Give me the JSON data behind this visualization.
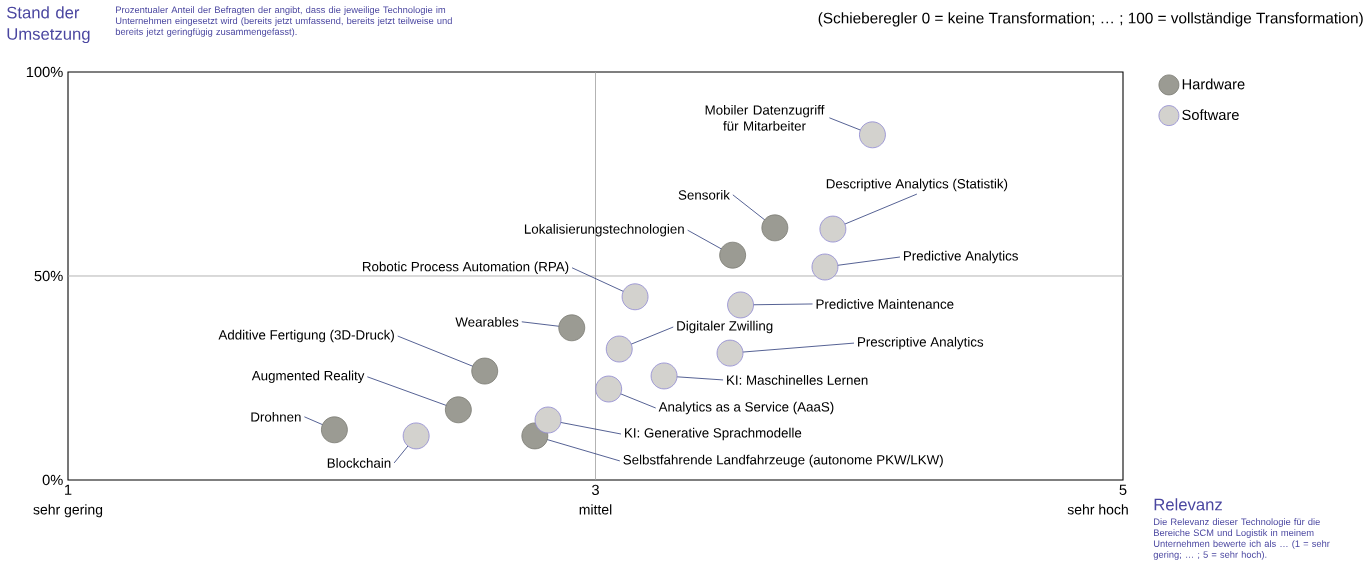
{
  "chart_data": {
    "type": "scatter",
    "ylabel": "Stand der Umsetzung",
    "subtitle": "Prozentualer Anteil der Befragten der angibt, dass die jeweilige Technologie im Unternehmen eingesetzt wird (bereits jetzt umfassend, bereits jetzt teilweise und bereits jetzt geringfügig zusammengefasst).",
    "xlabel": "Relevanz",
    "xlim": [
      1,
      5
    ],
    "xticks": [
      1,
      3,
      5
    ],
    "ylim": [
      0,
      100
    ],
    "yticks": [
      {
        "value": 0,
        "label": "0%"
      },
      {
        "value": 50,
        "label": "50%"
      },
      {
        "value": 100,
        "label": "100%"
      }
    ],
    "ref_lines": [
      {
        "axis": "x",
        "value": 3,
        "color": "#a0a0a0"
      },
      {
        "axis": "y",
        "value": 50,
        "color": "#a0a0a0"
      }
    ],
    "marker": "circle",
    "legend": "top right",
    "series": [
      {
        "name": "Hardware",
        "color": "#9b9b93",
        "x": [
          3.68,
          3.52,
          2.91,
          2.58,
          2.48,
          2.01,
          2.77
        ],
        "values": [
          61.8,
          55.1,
          37.3,
          26.7,
          17.2,
          12.3,
          10.8
        ]
      },
      {
        "name": "Software",
        "color": "#d3d2ce",
        "x": [
          4.05,
          3.9,
          3.87,
          3.15,
          3.55,
          3.09,
          3.51,
          3.26,
          3.05,
          2.82,
          2.32
        ],
        "values": [
          84.6,
          61.5,
          52.2,
          44.9,
          42.9,
          32.1,
          31.1,
          25.5,
          22.3,
          14.7,
          10.8
        ]
      }
    ],
    "annotations": [
      "(Schieberegler 0 = keine Transformation; … ; 100 = vollständige Transformation)",
      "sehr gering",
      "mittel",
      "sehr hoch",
      "Die Relevanz dieser Technologie für die Bereiche SCM und Logistik in meinem Unternehmen bewerte ich als … (1 = sehr gering; … ; 5 = sehr hoch).",
      {
        "text": "Mobiler Datenzugriff für Mitarbeiter",
        "x": 4.05,
        "y": 84.6
      },
      {
        "text": "Sensorik",
        "x": 3.68,
        "y": 61.8
      },
      {
        "text": "Descriptive Analytics (Statistik)",
        "x": 3.9,
        "y": 61.5
      },
      {
        "text": "Lokalisierungstechnologien",
        "x": 3.52,
        "y": 55.1
      },
      {
        "text": "Predictive Analytics",
        "x": 3.87,
        "y": 52.2
      },
      {
        "text": "Robotic Process Automation (RPA)",
        "x": 3.15,
        "y": 44.9
      },
      {
        "text": "Predictive Maintenance",
        "x": 3.55,
        "y": 42.9
      },
      {
        "text": "Wearables",
        "x": 2.91,
        "y": 37.3
      },
      {
        "text": "Digitaler Zwilling",
        "x": 3.09,
        "y": 32.1
      },
      {
        "text": "Prescriptive Analytics",
        "x": 3.51,
        "y": 31.1
      },
      {
        "text": "Additive Fertigung (3D-Druck)",
        "x": 2.58,
        "y": 26.7
      },
      {
        "text": "KI: Maschinelles Lernen",
        "x": 3.26,
        "y": 25.5
      },
      {
        "text": "Analytics as a Service (AaaS)",
        "x": 3.05,
        "y": 22.3
      },
      {
        "text": "Augmented Reality",
        "x": 2.48,
        "y": 17.2
      },
      {
        "text": "KI: Generative Sprachmodelle",
        "x": 2.82,
        "y": 14.7
      },
      {
        "text": "Drohnen",
        "x": 2.01,
        "y": 12.3
      },
      {
        "text": "Blockchain",
        "x": 2.32,
        "y": 10.8
      },
      {
        "text": "Selbstfahrende Landfahrzeuge (autonome PKW/LKW)",
        "x": 2.77,
        "y": 10.8
      }
    ]
  }
}
